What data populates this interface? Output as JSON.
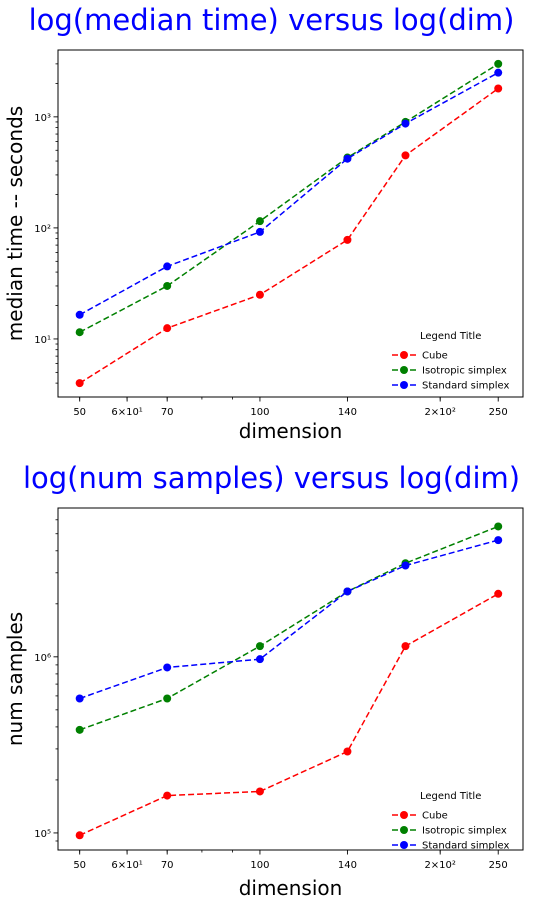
{
  "chart_data": [
    {
      "type": "line",
      "title": "log(median time) versus log(dim)",
      "title_color": "#0000ff",
      "xlabel": "dimension",
      "ylabel": "median time -- seconds",
      "xscale": "log",
      "yscale": "log",
      "xlim": [
        46.0,
        275.0
      ],
      "ylim": [
        3.0,
        4000.0
      ],
      "x": [
        50,
        70,
        100,
        140,
        175,
        250
      ],
      "x_ticks": [
        {
          "value": 50,
          "label": "50"
        },
        {
          "value": 60,
          "label": "6×10¹"
        },
        {
          "value": 70,
          "label": "70"
        },
        {
          "value": 100,
          "label": "100"
        },
        {
          "value": 140,
          "label": "140"
        },
        {
          "value": 200,
          "label": "2×10²"
        },
        {
          "value": 250,
          "label": "250"
        }
      ],
      "y_ticks": [
        {
          "value": 10,
          "label": "10¹"
        },
        {
          "value": 100,
          "label": "10²"
        },
        {
          "value": 1000,
          "label": "10³"
        }
      ],
      "legend": {
        "title": "Legend Title",
        "placement": "lower-right"
      },
      "series": [
        {
          "name": "Cube",
          "color": "#ff0000",
          "values": [
            4.0,
            12.5,
            25,
            78,
            450,
            1800
          ]
        },
        {
          "name": "Isotropic simplex",
          "color": "#008000",
          "values": [
            11.5,
            30,
            115,
            430,
            900,
            3000
          ]
        },
        {
          "name": "Standard simplex",
          "color": "#0000ff",
          "values": [
            16.5,
            45,
            92,
            420,
            870,
            2500
          ]
        }
      ]
    },
    {
      "type": "line",
      "title": "log(num samples) versus log(dim)",
      "title_color": "#0000ff",
      "xlabel": "dimension",
      "ylabel": "num samples",
      "xscale": "log",
      "yscale": "log",
      "xlim": [
        46.0,
        275.0
      ],
      "ylim": [
        80000,
        7000000
      ],
      "x": [
        50,
        70,
        100,
        140,
        175,
        250
      ],
      "x_ticks": [
        {
          "value": 50,
          "label": "50"
        },
        {
          "value": 60,
          "label": "6×10¹"
        },
        {
          "value": 70,
          "label": "70"
        },
        {
          "value": 100,
          "label": "100"
        },
        {
          "value": 140,
          "label": "140"
        },
        {
          "value": 200,
          "label": "2×10²"
        },
        {
          "value": 250,
          "label": "250"
        }
      ],
      "y_ticks": [
        {
          "value": 100000,
          "label": "10⁵"
        },
        {
          "value": 1000000,
          "label": "10⁶"
        }
      ],
      "legend": {
        "title": "Legend Title",
        "placement": "lower-right"
      },
      "series": [
        {
          "name": "Cube",
          "color": "#ff0000",
          "values": [
            97000,
            163000,
            172000,
            290000,
            1150000,
            2280000
          ]
        },
        {
          "name": "Isotropic simplex",
          "color": "#008000",
          "values": [
            385000,
            580000,
            1150000,
            2350000,
            3400000,
            5500000
          ]
        },
        {
          "name": "Standard simplex",
          "color": "#0000ff",
          "values": [
            580000,
            870000,
            970000,
            2350000,
            3300000,
            4600000
          ]
        }
      ]
    }
  ]
}
